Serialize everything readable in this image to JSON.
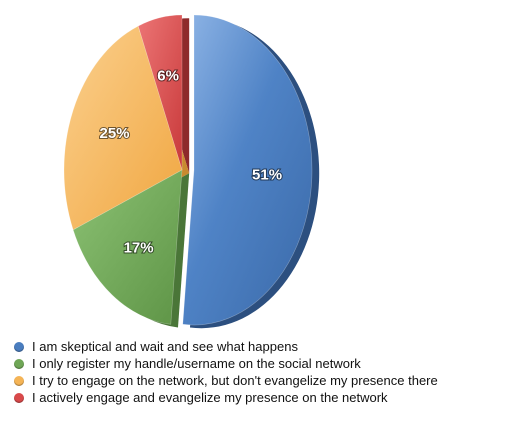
{
  "chart_data": {
    "type": "pie",
    "title": "",
    "unit": "%",
    "slices": [
      {
        "label": "I am skeptical and wait and see what happens",
        "value": 51,
        "value_label": "51%",
        "color": "#4a7dbf"
      },
      {
        "label": "I only register my handle/username on the social network",
        "value": 17,
        "value_label": "17%",
        "color": "#6fa656"
      },
      {
        "label": "I try to engage on the network, but don't evangelize my presence there",
        "value": 25,
        "value_label": "25%",
        "color": "#f5b456"
      },
      {
        "label": "I actively engage and evangelize my presence on the network",
        "value": 6,
        "value_label": "6%",
        "color": "#d9494a"
      }
    ],
    "exploded_slice": 0,
    "legend_position": "bottom-left",
    "style": "3d-exploded"
  }
}
